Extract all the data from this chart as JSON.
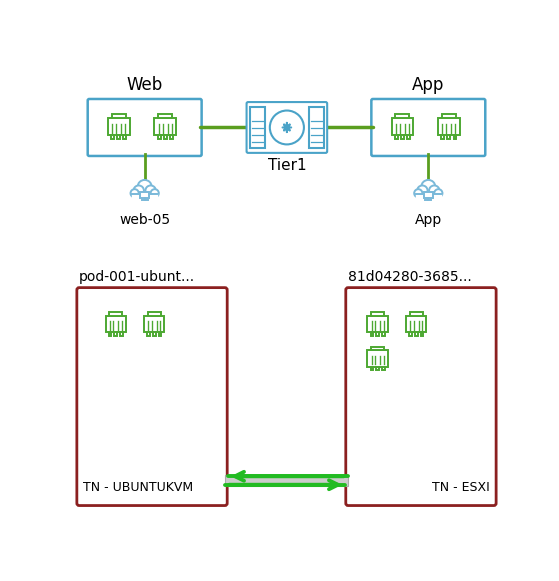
{
  "bg_color": "#ffffff",
  "web_label": "Web",
  "app_label": "App",
  "tier1_label": "Tier1",
  "web05_label": "web-05",
  "app_cloud_label": "App",
  "vm1_label": "pod-001-ubunt...",
  "vm2_label": "81d04280-3685...",
  "tn1_label": "TN - UBUNTUKVM",
  "tn2_label": "TN - ESXI",
  "section_border_web_app": "#4aa3c8",
  "section_border_vm": "#8b2020",
  "green_line": "#5a9e1f",
  "port_color": "#4da832",
  "router_border": "#4aa3c8",
  "cloud_color": "#7ab9d9",
  "arrow_green": "#22bb22",
  "gray_bar": "#cccccc",
  "gray_bar_edge": "#aaaaaa"
}
